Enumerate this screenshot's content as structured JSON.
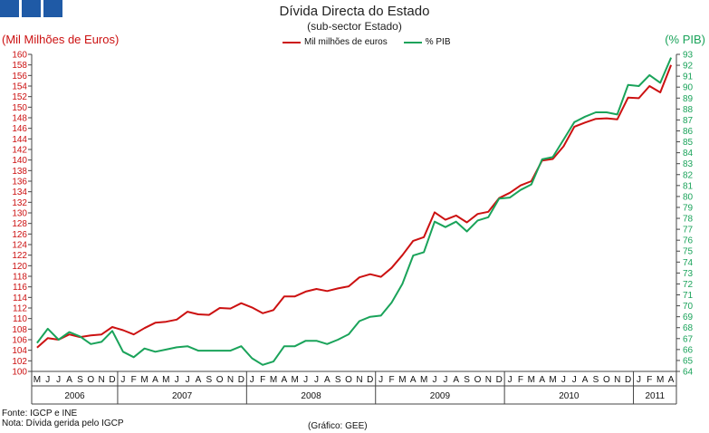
{
  "header": {
    "title": "Dívida Directa do Estado",
    "subtitle": "(sub-sector  Estado)",
    "y_left_label": "(Mil Milhões de Euros)",
    "y_right_label": "(% PIB)"
  },
  "footer": {
    "source": "Fonte: IGCP e INE",
    "note": "Nota: Dívida gerida pelo IGCP",
    "credit": "(Gráfico: GEE)"
  },
  "colors": {
    "euros": "#cc1111",
    "pib": "#1aa35a",
    "logo": "#1f5aa6"
  },
  "chart_data": {
    "type": "line",
    "title": "Dívida Directa do Estado",
    "subtitle": "(sub-sector  Estado)",
    "months": [
      "M",
      "J",
      "J",
      "A",
      "S",
      "O",
      "N",
      "D",
      "J",
      "F",
      "M",
      "A",
      "M",
      "J",
      "J",
      "A",
      "S",
      "O",
      "N",
      "D",
      "J",
      "F",
      "M",
      "A",
      "M",
      "J",
      "J",
      "A",
      "S",
      "O",
      "N",
      "D",
      "J",
      "F",
      "M",
      "A",
      "M",
      "J",
      "J",
      "A",
      "S",
      "O",
      "N",
      "D",
      "J",
      "F",
      "M",
      "A",
      "M",
      "J",
      "J",
      "A",
      "S",
      "O",
      "N",
      "D",
      "J",
      "F",
      "M",
      "A"
    ],
    "years": [
      {
        "label": "2006",
        "start": 0,
        "count": 8
      },
      {
        "label": "2007",
        "start": 8,
        "count": 12
      },
      {
        "label": "2008",
        "start": 20,
        "count": 12
      },
      {
        "label": "2009",
        "start": 32,
        "count": 12
      },
      {
        "label": "2010",
        "start": 44,
        "count": 12
      },
      {
        "label": "2011",
        "start": 56,
        "count": 4
      }
    ],
    "y_left": {
      "label": "(Mil Milhões de Euros)",
      "min": 100,
      "max": 160,
      "step": 2
    },
    "y_right": {
      "label": "(% PIB)",
      "min": 64,
      "max": 93,
      "step": 1
    },
    "series": [
      {
        "name": "Mil milhões de euros",
        "axis": "left",
        "values": [
          104.5,
          106.3,
          106.0,
          107.0,
          106.5,
          106.8,
          107.0,
          108.4,
          107.8,
          107.0,
          108.2,
          109.2,
          109.4,
          109.8,
          111.3,
          110.8,
          110.7,
          112.0,
          111.9,
          112.9,
          112.1,
          111.0,
          111.6,
          114.2,
          114.2,
          115.1,
          115.6,
          115.2,
          115.7,
          116.1,
          117.8,
          118.4,
          117.9,
          119.6,
          122.0,
          124.7,
          125.4,
          130.1,
          128.7,
          129.5,
          128.2,
          129.8,
          130.2,
          132.8,
          133.8,
          135.2,
          136.0,
          139.9,
          140.2,
          142.6,
          146.3,
          147.1,
          147.8,
          147.9,
          147.7,
          151.8,
          151.7,
          154.0,
          152.8,
          158.0
        ]
      },
      {
        "name": "% PIB",
        "axis": "right",
        "values": [
          66.6,
          67.9,
          66.9,
          67.6,
          67.2,
          66.5,
          66.7,
          67.7,
          65.8,
          65.3,
          66.1,
          65.8,
          66.0,
          66.2,
          66.3,
          65.9,
          65.9,
          65.9,
          65.9,
          66.3,
          65.2,
          64.6,
          64.9,
          66.3,
          66.3,
          66.8,
          66.8,
          66.5,
          66.9,
          67.4,
          68.6,
          69.0,
          69.1,
          70.3,
          72.0,
          74.6,
          74.9,
          77.7,
          77.2,
          77.7,
          76.8,
          77.8,
          78.1,
          79.8,
          79.9,
          80.6,
          81.1,
          83.4,
          83.6,
          85.2,
          86.8,
          87.3,
          87.7,
          87.7,
          87.5,
          90.2,
          90.1,
          91.1,
          90.4,
          92.7
        ]
      }
    ]
  }
}
